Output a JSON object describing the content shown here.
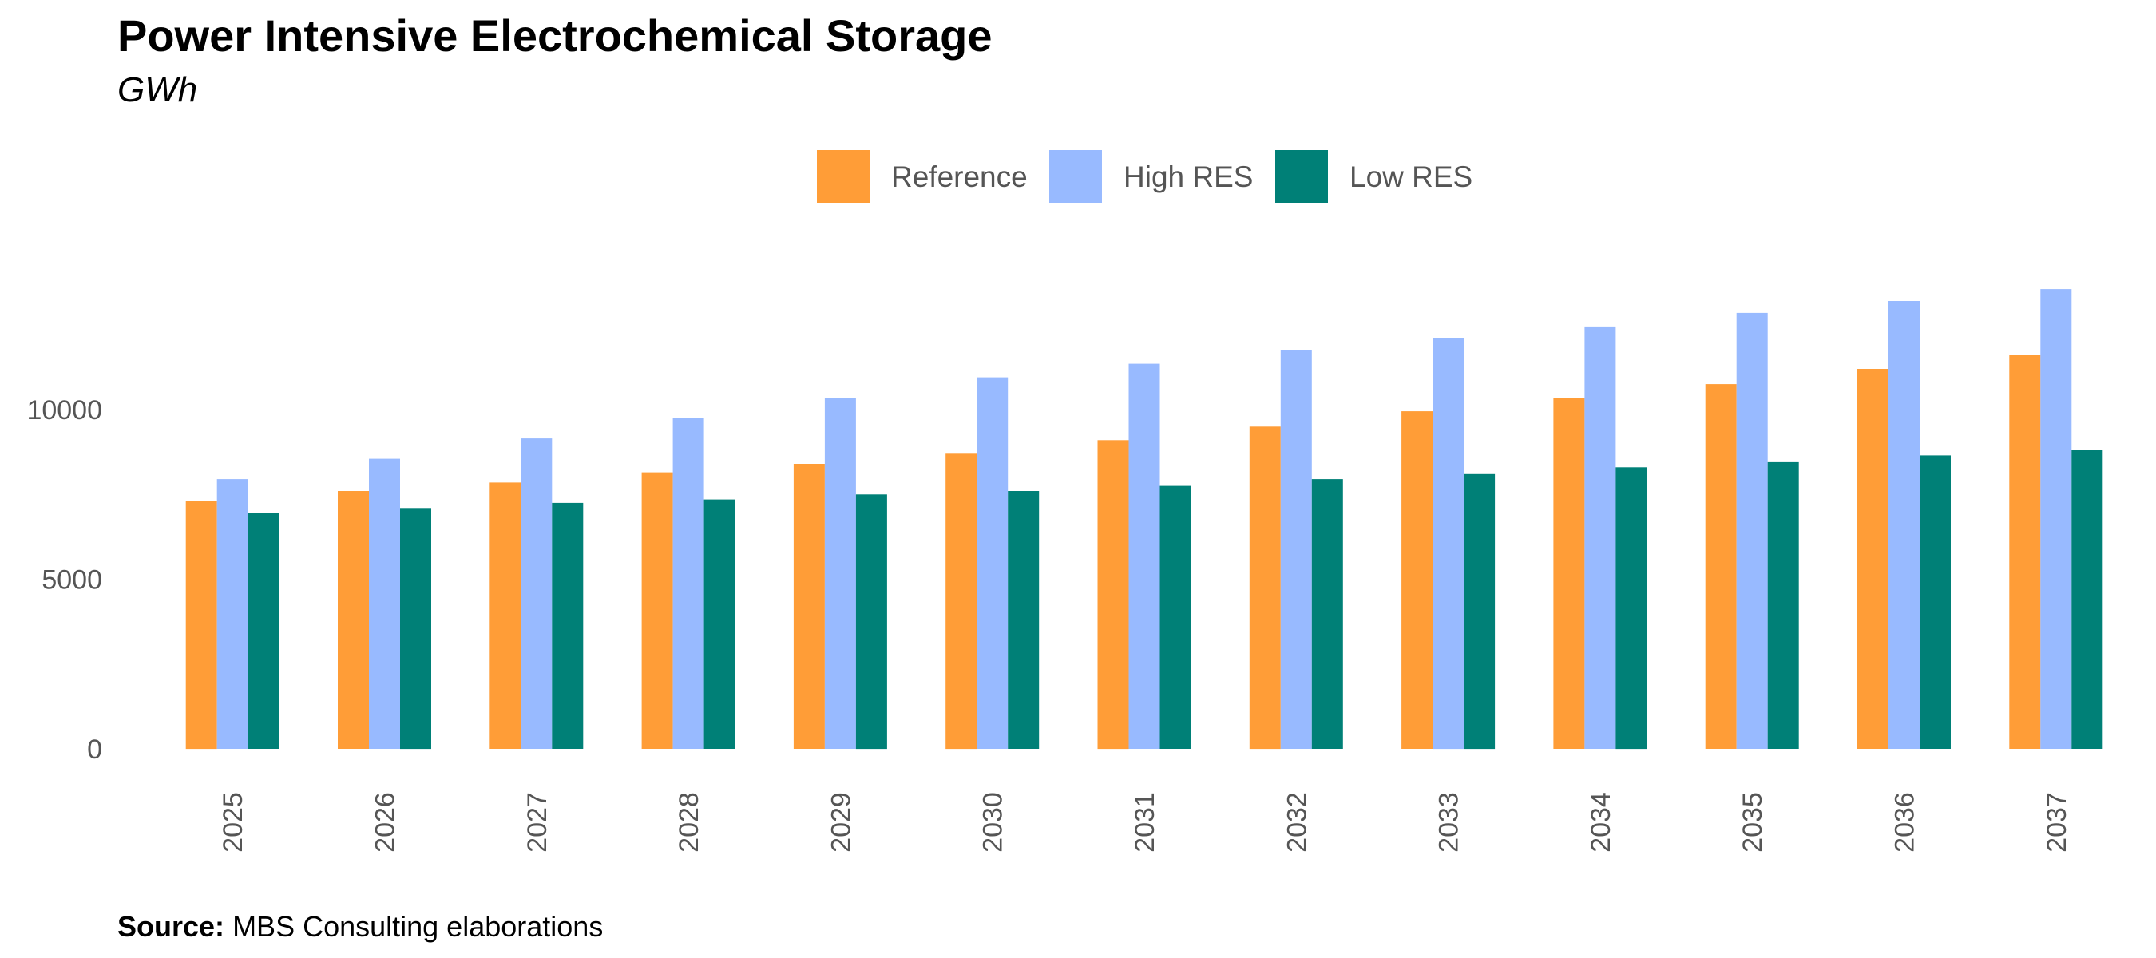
{
  "title": "Power Intensive Electrochemical Storage",
  "subtitle": "GWh",
  "source": {
    "label": "Source:",
    "text": "MBS Consulting elaborations"
  },
  "colors": {
    "reference": "#FF9D37",
    "high_res": "#98BAFF",
    "low_res": "#008077"
  },
  "chart_data": {
    "type": "bar",
    "title": "Power Intensive Electrochemical Storage",
    "subtitle": "GWh",
    "xlabel": "",
    "ylabel": "",
    "ylim": [
      0,
      15000
    ],
    "yticks": [
      0,
      5000,
      10000
    ],
    "grid": false,
    "legend_position": "top",
    "categories": [
      "2025",
      "2026",
      "2027",
      "2028",
      "2029",
      "2030",
      "2031",
      "2032",
      "2033",
      "2034",
      "2035",
      "2036",
      "2037"
    ],
    "series": [
      {
        "name": "Reference",
        "color": "#FF9D37",
        "values": [
          7300,
          7600,
          7850,
          8150,
          8400,
          8700,
          9100,
          9500,
          9950,
          10350,
          10750,
          11200,
          11600
        ]
      },
      {
        "name": "High RES",
        "color": "#98BAFF",
        "values": [
          7950,
          8550,
          9150,
          9750,
          10350,
          10950,
          11350,
          11750,
          12100,
          12450,
          12850,
          13200,
          13550
        ]
      },
      {
        "name": "Low RES",
        "color": "#008077",
        "values": [
          6950,
          7100,
          7250,
          7350,
          7500,
          7600,
          7750,
          7950,
          8100,
          8300,
          8450,
          8650,
          8800
        ]
      }
    ]
  }
}
